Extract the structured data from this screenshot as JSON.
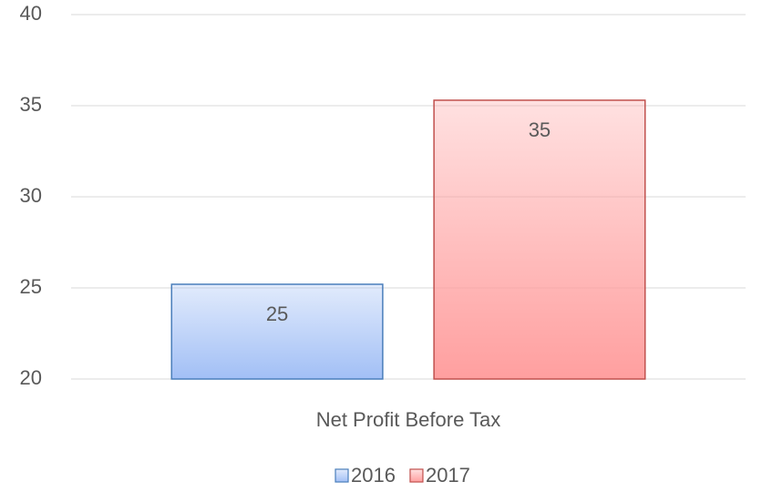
{
  "chart_data": {
    "type": "bar",
    "categories": [
      "Net Profit Before Tax"
    ],
    "series": [
      {
        "name": "2016",
        "color": "#9dbcf5",
        "values": [
          25.2
        ],
        "value_labels": [
          "25"
        ]
      },
      {
        "name": "2017",
        "color": "#ff9a9a",
        "values": [
          35.3
        ],
        "value_labels": [
          "35"
        ]
      }
    ],
    "ylim": [
      20,
      40
    ],
    "yticks": [
      20,
      25,
      30,
      35,
      40
    ],
    "grid": true,
    "legend": "bottom"
  }
}
